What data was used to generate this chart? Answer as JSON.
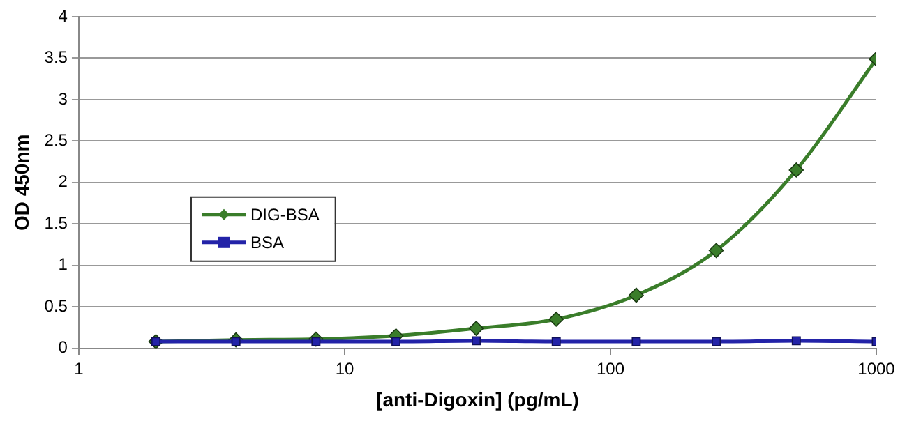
{
  "chart_data": {
    "type": "line",
    "xlabel": "[anti-Digoxin] (pg/mL)",
    "ylabel": "OD 450nm",
    "log": "x",
    "x": [
      1.95,
      3.9,
      7.8,
      15.6,
      31.25,
      62.5,
      125,
      250,
      500,
      1000
    ],
    "xlim": [
      1,
      1000
    ],
    "xticks": [
      1,
      10,
      100,
      1000
    ],
    "ylim": [
      0,
      4
    ],
    "yticks": [
      0,
      0.5,
      1,
      1.5,
      2,
      2.5,
      3,
      3.5,
      4
    ],
    "grid": "y",
    "legend": "left",
    "series": [
      {
        "name": "DIG-BSA",
        "color": "#3a7d2a",
        "marker": "diamond",
        "values": [
          0.08,
          0.1,
          0.11,
          0.15,
          0.24,
          0.35,
          0.64,
          1.18,
          2.15,
          3.49
        ]
      },
      {
        "name": "BSA",
        "color": "#2323a8",
        "marker": "square",
        "values": [
          0.08,
          0.08,
          0.08,
          0.08,
          0.09,
          0.08,
          0.08,
          0.08,
          0.09,
          0.08
        ]
      }
    ]
  }
}
